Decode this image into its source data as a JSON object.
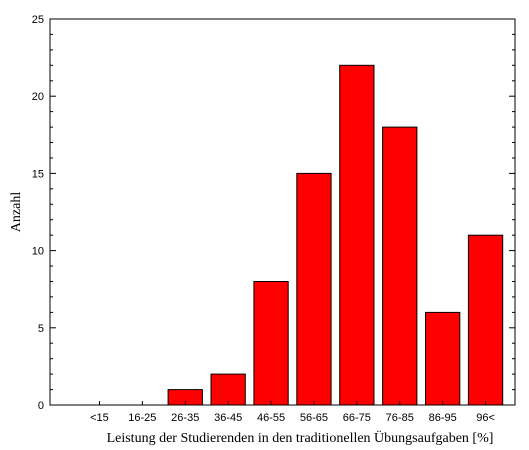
{
  "chart_data": {
    "type": "bar",
    "title": "",
    "xlabel": "Leistung der Studierenden in den traditionellen Übungsaufgaben [%]",
    "ylabel": "Anzahl",
    "categories": [
      "<15",
      "16-25",
      "26-35",
      "36-45",
      "46-55",
      "56-65",
      "66-75",
      "76-85",
      "86-95",
      "96<"
    ],
    "values": [
      0,
      0,
      1,
      2,
      8,
      15,
      22,
      18,
      6,
      11
    ],
    "ylim": [
      0,
      25
    ],
    "yticks": [
      0,
      5,
      10,
      15,
      20,
      25
    ],
    "grid": false,
    "legend": "none",
    "colors": {
      "bar_fill": "#ff0000",
      "bar_stroke": "#000000",
      "axis": "#000000"
    }
  }
}
